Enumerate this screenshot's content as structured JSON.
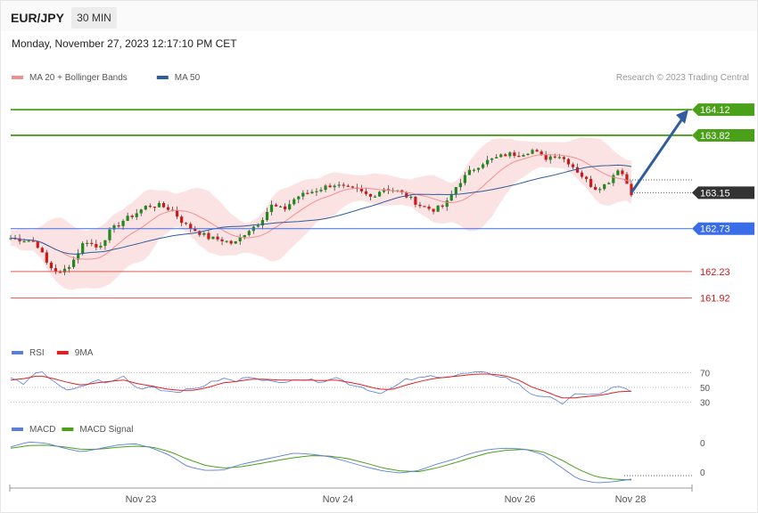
{
  "header": {
    "pair": "EUR/JPY",
    "timeframe": "30 MIN"
  },
  "date": "Monday, November 27, 2023 12:17:10 PM CET",
  "credit": "Research © 2023 Trading Central",
  "legend": {
    "main": [
      {
        "name": "MA 20 + Bollinger Bands",
        "color": "#f08f8f"
      },
      {
        "name": "MA 50",
        "color": "#2f5d9e"
      }
    ],
    "rsi": [
      {
        "name": "RSI",
        "color": "#5b7fd6"
      },
      {
        "name": "9MA",
        "color": "#e02020"
      }
    ],
    "macd": [
      {
        "name": "MACD",
        "color": "#5b7fd6"
      },
      {
        "name": "MACD Signal",
        "color": "#4aa018"
      }
    ]
  },
  "colors": {
    "resistance": "#4aa018",
    "pivot": "#3a6ee8",
    "support": "#e05a5a",
    "current": "#333333",
    "up": "#1e8a1e",
    "down": "#d01818",
    "arrow": "#2f5d9e"
  },
  "chart_data": {
    "type": "candlestick",
    "x_ticks": [
      "Nov 23",
      "Nov 24",
      "Nov 26",
      "Nov 28"
    ],
    "y_range": [
      161.5,
      164.35
    ],
    "levels": [
      {
        "label": "164.12",
        "value": 164.12,
        "kind": "resistance"
      },
      {
        "label": "163.82",
        "value": 163.82,
        "kind": "resistance"
      },
      {
        "label": "163.15",
        "value": 163.15,
        "kind": "current"
      },
      {
        "label": "162.73",
        "value": 162.73,
        "kind": "pivot"
      },
      {
        "label": "162.23",
        "value": 162.23,
        "kind": "support"
      },
      {
        "label": "161.92",
        "value": 161.92,
        "kind": "support"
      }
    ],
    "close_path": [
      162.62,
      162.6,
      162.58,
      162.3,
      162.2,
      162.35,
      162.6,
      162.5,
      162.7,
      162.82,
      162.9,
      163.0,
      163.0,
      162.95,
      162.78,
      162.7,
      162.62,
      162.6,
      162.55,
      162.7,
      162.8,
      163.0,
      162.95,
      163.1,
      163.15,
      163.2,
      163.25,
      163.2,
      163.17,
      163.1,
      163.2,
      163.18,
      163.1,
      163.0,
      162.95,
      163.0,
      163.25,
      163.4,
      163.5,
      163.55,
      163.6,
      163.6,
      163.65,
      163.55,
      163.6,
      163.5,
      163.35,
      163.2,
      163.25,
      163.45,
      163.15
    ],
    "rsi": {
      "levels": [
        70,
        50,
        30
      ],
      "range": [
        20,
        80
      ],
      "rsi_path": [
        62,
        55,
        72,
        60,
        45,
        50,
        60,
        56,
        65,
        48,
        52,
        45,
        45,
        48,
        55,
        62,
        58,
        66,
        60,
        55,
        62,
        60,
        58,
        64,
        55,
        50,
        42,
        48,
        60,
        62,
        66,
        64,
        68,
        70,
        68,
        64,
        54,
        40,
        38,
        28,
        42,
        38,
        44,
        52,
        44
      ],
      "ma_path": [
        60,
        62,
        66,
        62,
        57,
        53,
        56,
        58,
        60,
        55,
        52,
        48,
        46,
        46,
        50,
        56,
        58,
        61,
        61,
        60,
        60,
        60,
        59,
        60,
        57,
        53,
        48,
        47,
        53,
        58,
        62,
        64,
        66,
        68,
        68,
        66,
        60,
        50,
        44,
        36,
        36,
        38,
        40,
        44,
        45
      ]
    },
    "macd": {
      "levels": [
        0,
        0
      ],
      "macd_path": [
        0.35,
        0.55,
        0.5,
        0.3,
        0.15,
        0.28,
        0.42,
        0.48,
        0.3,
        0.0,
        -0.45,
        -0.6,
        -0.58,
        -0.35,
        -0.2,
        -0.05,
        0.1,
        0.05,
        -0.05,
        -0.25,
        -0.45,
        -0.62,
        -0.7,
        -0.6,
        -0.35,
        -0.15,
        0.1,
        0.25,
        0.3,
        0.25,
        0.05,
        -0.45,
        -0.95,
        -1.1,
        -1.05,
        -0.95
      ],
      "signal_path": [
        0.3,
        0.4,
        0.42,
        0.35,
        0.25,
        0.26,
        0.33,
        0.38,
        0.34,
        0.15,
        -0.15,
        -0.4,
        -0.5,
        -0.45,
        -0.33,
        -0.2,
        -0.08,
        0.0,
        -0.02,
        -0.12,
        -0.3,
        -0.5,
        -0.62,
        -0.65,
        -0.5,
        -0.3,
        -0.08,
        0.12,
        0.22,
        0.25,
        0.15,
        -0.15,
        -0.55,
        -0.85,
        -0.95,
        -0.98
      ]
    }
  }
}
